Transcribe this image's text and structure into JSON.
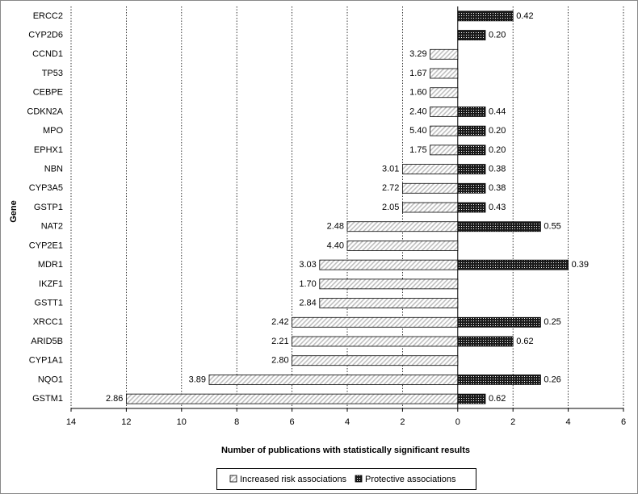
{
  "chart_data": {
    "type": "diverging-bar",
    "x_label": "Number of publications with statistically significant results",
    "y_label": "Gene",
    "categories": [
      "ERCC2",
      "CYP2D6",
      "CCND1",
      "TP53",
      "CEBPE",
      "CDKN2A",
      "MPO",
      "EPHX1",
      "NBN",
      "CYP3A5",
      "GSTP1",
      "NAT2",
      "CYP2E1",
      "MDR1",
      "IKZF1",
      "GSTT1",
      "XRCC1",
      "ARID5B",
      "CYP1A1",
      "NQO1",
      "GSTM1"
    ],
    "series": [
      {
        "name": "Increased risk associations",
        "color": "#bfbfbf",
        "values": [
          null,
          null,
          -1,
          -1,
          -1,
          -1,
          -1,
          -1,
          -2,
          -2,
          -2,
          -4,
          -4,
          -5,
          -5,
          -5,
          -6,
          -6,
          -6,
          -9,
          -12
        ],
        "bar_labels": [
          null,
          null,
          "3.29",
          "1.67",
          "1.60",
          "2.40",
          "5.40",
          "1.75",
          "3.01",
          "2.72",
          "2.05",
          "2.48",
          "4.40",
          "3.03",
          "1.70",
          "2.84",
          "2.42",
          "2.21",
          "2.80",
          "3.89",
          "2.86"
        ]
      },
      {
        "name": "Protective associations",
        "color": "#1a1a1a",
        "values": [
          2,
          1,
          null,
          null,
          null,
          1,
          1,
          1,
          1,
          1,
          1,
          3,
          null,
          4,
          null,
          null,
          3,
          2,
          null,
          3,
          1
        ],
        "bar_labels": [
          "0.42",
          "0.20",
          null,
          null,
          null,
          "0.44",
          "0.20",
          "0.20",
          "0.38",
          "0.38",
          "0.43",
          "0.55",
          null,
          "0.39",
          null,
          null,
          "0.25",
          "0.62",
          null,
          "0.26",
          "0.62"
        ]
      }
    ],
    "xlim": [
      -14,
      6
    ],
    "xticks": [
      {
        "value": -14,
        "label": "14"
      },
      {
        "value": -12,
        "label": "12"
      },
      {
        "value": -10,
        "label": "10"
      },
      {
        "value": -8,
        "label": "8"
      },
      {
        "value": -6,
        "label": "6"
      },
      {
        "value": -4,
        "label": "4"
      },
      {
        "value": -2,
        "label": "2"
      },
      0,
      2,
      4,
      6
    ],
    "grid": true,
    "legend": "bottom"
  }
}
